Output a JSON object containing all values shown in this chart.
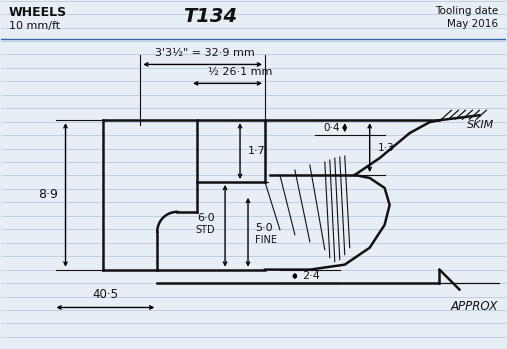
{
  "bg_color": "#e8eef5",
  "line_color": "#111111",
  "ruled_color": "#b0c4d8",
  "blue_line_color": "#3366aa",
  "title": "T134",
  "wheels": "WHEELS",
  "scale": "10 mm/ft",
  "tooling_date": "Tooling date",
  "may_2016": "May 2016",
  "approx": "APPROX",
  "dim1_label": "3'3½\" = 32·9 mm",
  "dim2_label": "½ 26·1 mm",
  "dim_89": "8·9",
  "dim_17": "1·7",
  "dim_60": "6·0",
  "dim_50": "5·0",
  "std": "STD",
  "fine": "FINE",
  "dim_24": "2·4",
  "dim_04": "0·4",
  "dim_13": "1·3",
  "skim": "SKIM",
  "dim_405": "40·5",
  "lw_main": 1.8,
  "lw_dim": 1.0
}
